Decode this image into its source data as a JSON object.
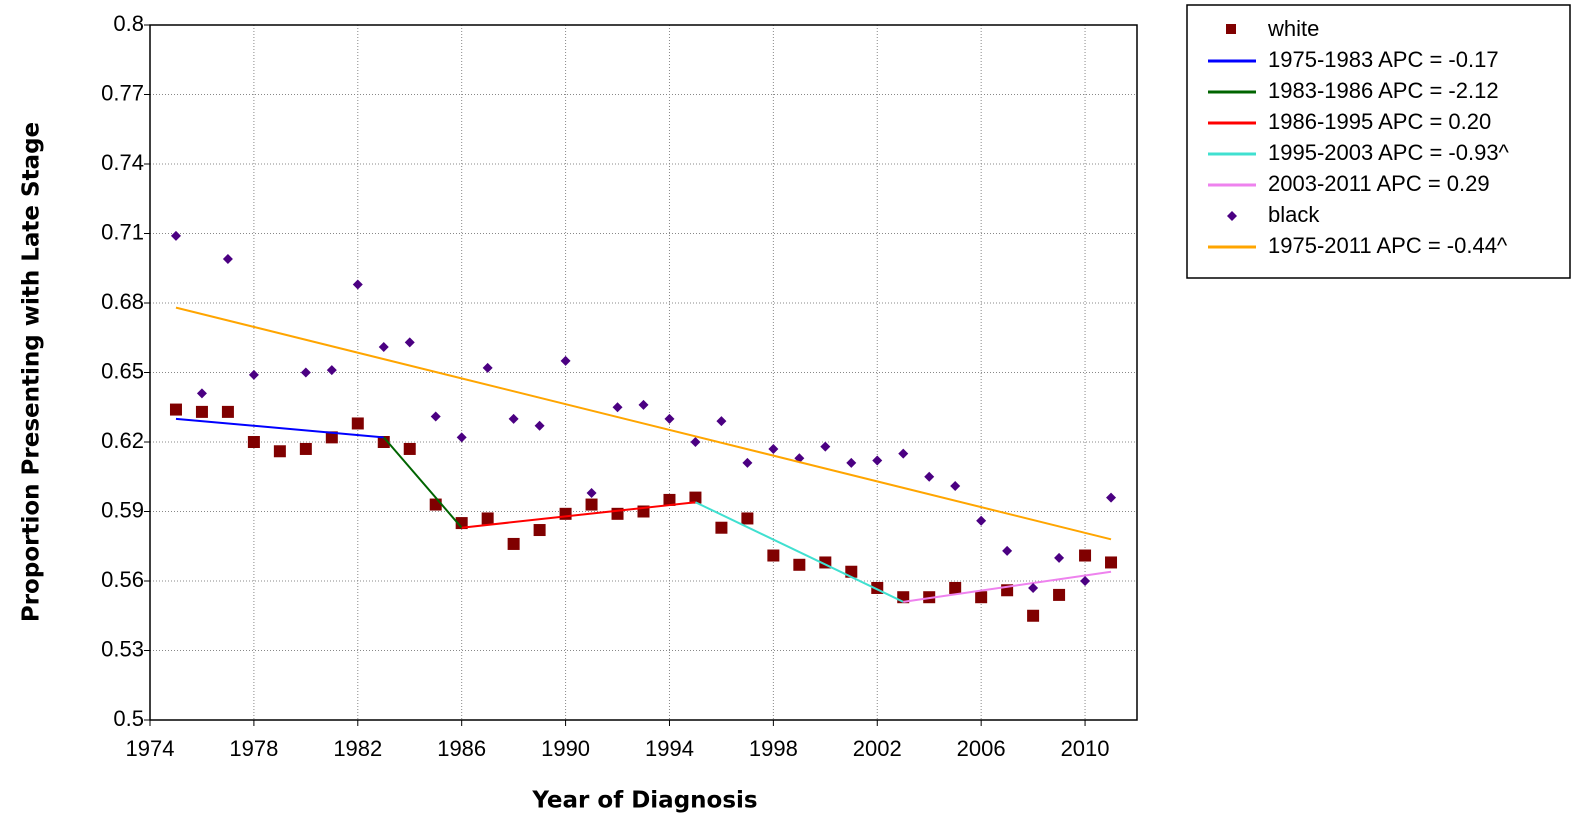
{
  "chart_data": {
    "type": "scatter",
    "x_label": "Year of Diagnosis",
    "y_label": "Proportion Presenting with Late Stage",
    "xlim": [
      1974,
      2012
    ],
    "ylim": [
      0.5,
      0.8
    ],
    "xticks": [
      1974,
      1978,
      1982,
      1986,
      1990,
      1994,
      1998,
      2002,
      2006,
      2010
    ],
    "yticks": [
      0.5,
      0.53,
      0.56,
      0.59,
      0.62,
      0.65,
      0.68,
      0.71,
      0.74,
      0.77,
      0.8
    ],
    "grid": true,
    "legend": "outside-right",
    "series": [
      {
        "name": "white",
        "color": "#800000",
        "mode": "markers",
        "marker": "square",
        "x": [
          1975,
          1976,
          1977,
          1978,
          1979,
          1980,
          1981,
          1982,
          1983,
          1984,
          1985,
          1986,
          1987,
          1988,
          1989,
          1990,
          1991,
          1992,
          1993,
          1994,
          1995,
          1996,
          1997,
          1998,
          1999,
          2000,
          2001,
          2002,
          2003,
          2004,
          2005,
          2006,
          2007,
          2008,
          2009,
          2010,
          2011
        ],
        "values": [
          0.634,
          0.633,
          0.633,
          0.62,
          0.616,
          0.617,
          0.622,
          0.628,
          0.62,
          0.617,
          0.593,
          0.585,
          0.587,
          0.576,
          0.582,
          0.589,
          0.593,
          0.589,
          0.59,
          0.595,
          0.596,
          0.583,
          0.587,
          0.571,
          0.567,
          0.568,
          0.564,
          0.557,
          0.553,
          0.553,
          0.557,
          0.553,
          0.556,
          0.545,
          0.554,
          0.571,
          0.568
        ]
      },
      {
        "name": "1975-1983 APC = -0.17",
        "color": "#0000ff",
        "mode": "line",
        "x": [
          1975,
          1983
        ],
        "values": [
          0.63,
          0.622
        ]
      },
      {
        "name": "1983-1986 APC = -2.12",
        "color": "#006400",
        "mode": "line",
        "x": [
          1983,
          1986
        ],
        "values": [
          0.622,
          0.583
        ]
      },
      {
        "name": "1986-1995 APC = 0.20",
        "color": "#ff0000",
        "mode": "line",
        "x": [
          1986,
          1995
        ],
        "values": [
          0.583,
          0.594
        ]
      },
      {
        "name": "1995-2003 APC = -0.93^",
        "color": "#40e0d0",
        "mode": "line",
        "x": [
          1995,
          2003
        ],
        "values": [
          0.594,
          0.551
        ]
      },
      {
        "name": "2003-2011 APC = 0.29",
        "color": "#ee82ee",
        "mode": "line",
        "x": [
          2003,
          2011
        ],
        "values": [
          0.551,
          0.564
        ]
      },
      {
        "name": "black",
        "color": "#4b0082",
        "mode": "markers",
        "marker": "diamond",
        "x": [
          1975,
          1976,
          1977,
          1978,
          1979,
          1980,
          1981,
          1982,
          1983,
          1984,
          1985,
          1986,
          1987,
          1988,
          1989,
          1990,
          1991,
          1992,
          1993,
          1994,
          1995,
          1996,
          1997,
          1998,
          1999,
          2000,
          2001,
          2002,
          2003,
          2004,
          2005,
          2006,
          2007,
          2008,
          2009,
          2010,
          2011
        ],
        "values": [
          0.709,
          0.641,
          0.699,
          0.649,
          null,
          0.65,
          0.651,
          0.688,
          0.661,
          0.663,
          0.631,
          0.622,
          0.652,
          0.63,
          0.627,
          0.655,
          0.598,
          0.635,
          0.636,
          0.63,
          0.62,
          0.629,
          0.611,
          0.617,
          0.613,
          0.618,
          0.611,
          0.612,
          0.615,
          0.605,
          0.601,
          0.586,
          0.573,
          0.557,
          0.57,
          0.56,
          0.596
        ]
      },
      {
        "name": "1975-2011 APC = -0.44^",
        "color": "#ffa500",
        "mode": "line",
        "x": [
          1975,
          2011
        ],
        "values": [
          0.678,
          0.578
        ]
      }
    ]
  }
}
